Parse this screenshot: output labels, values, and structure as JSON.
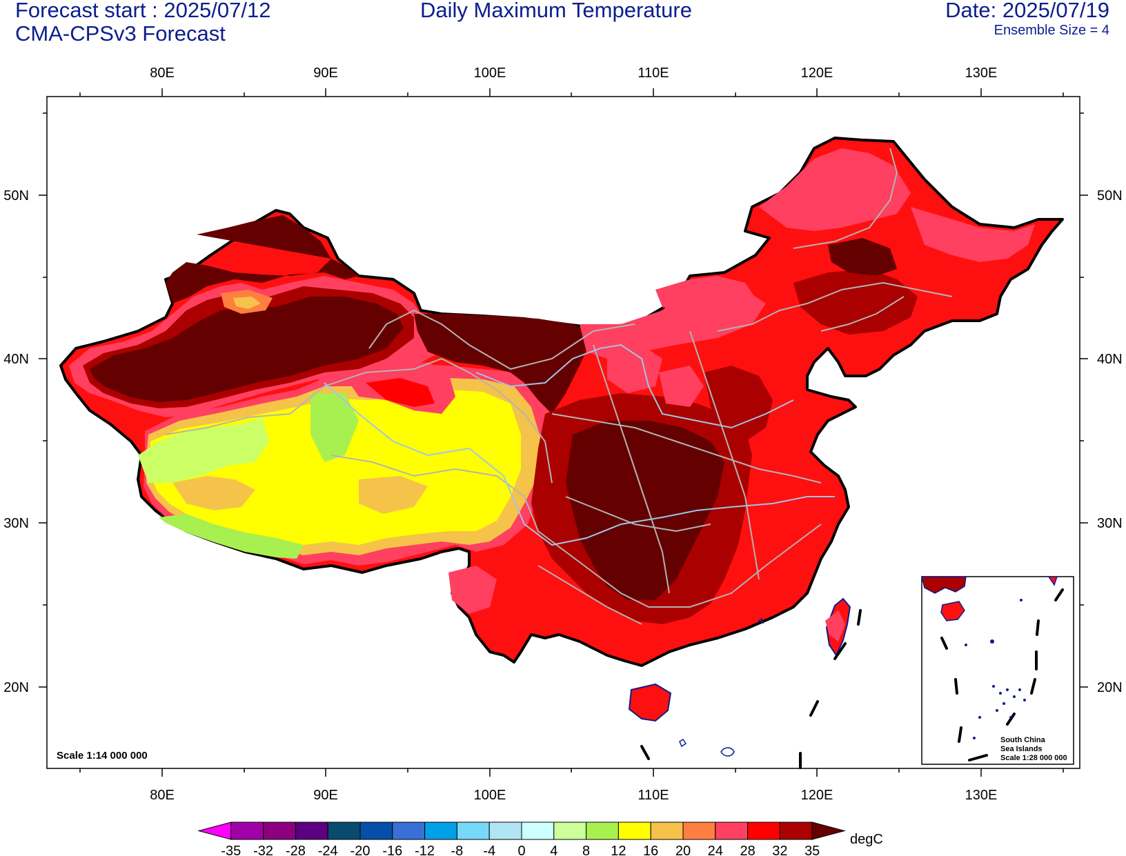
{
  "header": {
    "forecast_start": "Forecast start : 2025/07/12",
    "model": "CMA-CPSv3 Forecast",
    "title": "Daily Maximum Temperature",
    "date": "Date: 2025/07/19",
    "ensemble": "Ensemble Size = 4"
  },
  "axes": {
    "lon_labels": [
      "80E",
      "90E",
      "100E",
      "110E",
      "120E",
      "130E"
    ],
    "lat_labels": [
      "50N",
      "40N",
      "30N",
      "20N"
    ]
  },
  "map": {
    "scale_text": "Scale 1:14 000 000",
    "inset_lines": [
      "South China",
      "Sea Islands",
      "Scale 1:28 000 000"
    ]
  },
  "colorbar": {
    "unit": "degC",
    "ticks": [
      "-35",
      "-32",
      "-28",
      "-24",
      "-20",
      "-16",
      "-12",
      "-8",
      "-4",
      "0",
      "4",
      "8",
      "12",
      "16",
      "20",
      "24",
      "28",
      "32",
      "35"
    ],
    "colors": [
      "#ff00ff",
      "#a000a8",
      "#8c0080",
      "#5a0080",
      "#0a4a6e",
      "#0450a8",
      "#3a6fd8",
      "#00a0e6",
      "#78d8f8",
      "#b0e6f4",
      "#ccffff",
      "#ccff99",
      "#a8f050",
      "#ffff00",
      "#f5c34a",
      "#ff7f40",
      "#ff4060",
      "#ff0000",
      "#aa0000",
      "#640000"
    ]
  }
}
